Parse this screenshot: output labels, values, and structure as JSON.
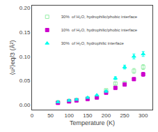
{
  "chart_data": {
    "type": "scatter",
    "xlabel": "Temperature (K)",
    "ylabel": "⟨u²⟩eq/3 (Å²)",
    "xlim": [
      0,
      325
    ],
    "ylim": [
      -0.01,
      0.205
    ],
    "xticks": [
      0,
      50,
      100,
      150,
      200,
      250,
      300
    ],
    "yticks": [
      {
        "value": 0.0,
        "label": "0.00"
      },
      0.05,
      {
        "value": 0.1,
        "label": "0.10"
      },
      0.15,
      {
        "value": 0.2,
        "label": "0.20"
      }
    ],
    "grid": false,
    "legend": "upper left",
    "series": [
      {
        "name": "30%  of H₂O, hydrophilic/phobic interface",
        "marker": "square-open",
        "color": "#99eeaa",
        "x": [
          70,
          100,
          120,
          150,
          175,
          200,
          225,
          250,
          275,
          300
        ],
        "values": [
          0.005,
          0.008,
          0.01,
          0.013,
          0.016,
          0.03,
          0.044,
          0.045,
          0.07,
          0.078
        ],
        "yerr": [
          0.001,
          0.001,
          0.001,
          0.001,
          0.001,
          0.002,
          0.003,
          0.003,
          0.005,
          0.005
        ]
      },
      {
        "name": "10%  of H₂O, hydrophilic/phobic interface",
        "marker": "square",
        "color": "#cc00cc",
        "x": [
          70,
          100,
          120,
          150,
          175,
          200,
          225,
          250,
          275,
          300
        ],
        "values": [
          0.004,
          0.007,
          0.009,
          0.012,
          0.015,
          0.025,
          0.035,
          0.042,
          0.053,
          0.063
        ],
        "yerr": [
          0.001,
          0.001,
          0.001,
          0.001,
          0.001,
          0.002,
          0.002,
          0.003,
          0.003,
          0.004
        ]
      },
      {
        "name": "30%  of H₂O, hydrophilic interface",
        "marker": "triangle-up",
        "color": "#00ffee",
        "x": [
          70,
          100,
          120,
          150,
          175,
          200,
          225,
          250,
          275,
          300
        ],
        "values": [
          0.006,
          0.009,
          0.011,
          0.015,
          0.02,
          0.028,
          0.055,
          0.078,
          0.1,
          0.105
        ],
        "yerr": [
          0.001,
          0.001,
          0.001,
          0.001,
          0.001,
          0.002,
          0.003,
          0.004,
          0.005,
          0.005
        ]
      }
    ]
  }
}
